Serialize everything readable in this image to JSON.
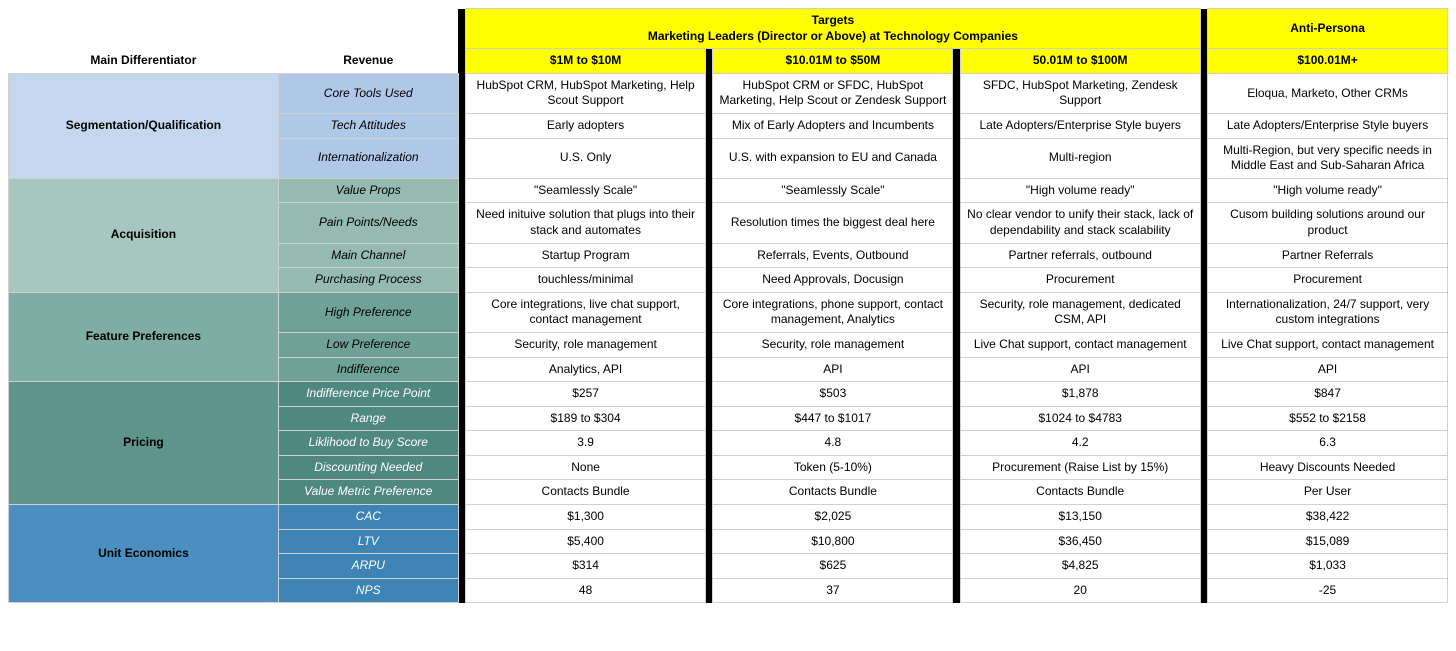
{
  "header": {
    "main_diff": "Main Differentiator",
    "revenue": "Revenue",
    "targets_title": "Targets",
    "targets_subtitle": "Marketing Leaders (Director or Above) at Technology Companies",
    "anti_persona": "Anti-Persona",
    "col1": "$1M to $10M",
    "col2": "$10.01M to $50M",
    "col3": "50.01M to $100M",
    "col4": "$100.01M+"
  },
  "groups": [
    {
      "name": "Segmentation/Qualification",
      "cat_class": "g0-cat",
      "sub_class": "g0-sub",
      "rows": [
        {
          "label": "Core Tools Used",
          "c1": "HubSpot CRM, HubSpot Marketing, Help Scout Support",
          "c2": "HubSpot CRM or SFDC, HubSpot Marketing, Help Scout or Zendesk Support",
          "c3": "SFDC, HubSpot Marketing, Zendesk Support",
          "c4": "Eloqua, Marketo, Other CRMs"
        },
        {
          "label": "Tech Attitudes",
          "c1": "Early adopters",
          "c2": "Mix of Early Adopters and Incumbents",
          "c3": "Late Adopters/Enterprise Style buyers",
          "c4": "Late Adopters/Enterprise Style buyers"
        },
        {
          "label": "Internationalization",
          "c1": "U.S. Only",
          "c2": "U.S. with expansion to EU and Canada",
          "c3": "Multi-region",
          "c4": "Multi-Region, but very specific needs in Middle East and Sub-Saharan Africa"
        }
      ]
    },
    {
      "name": "Acquisition",
      "cat_class": "g1-cat",
      "sub_class": "g1-sub",
      "rows": [
        {
          "label": "Value Props",
          "c1": "\"Seamlessly Scale\"",
          "c2": "\"Seamlessly Scale\"",
          "c3": "\"High volume ready\"",
          "c4": "\"High volume ready\""
        },
        {
          "label": "Pain Points/Needs",
          "c1": "Need inituive solution that plugs into their stack and automates",
          "c2": "Resolution times the biggest deal here",
          "c3": "No clear vendor to unify their stack, lack of dependability and stack scalability",
          "c4": "Cusom building solutions around our product"
        },
        {
          "label": "Main Channel",
          "c1": "Startup Program",
          "c2": "Referrals, Events, Outbound",
          "c3": "Partner referrals, outbound",
          "c4": "Partner Referrals"
        },
        {
          "label": "Purchasing Process",
          "c1": "touchless/minimal",
          "c2": "Need Approvals, Docusign",
          "c3": "Procurement",
          "c4": "Procurement"
        }
      ]
    },
    {
      "name": "Feature Preferences",
      "cat_class": "g2-cat",
      "sub_class": "g2-sub",
      "rows": [
        {
          "label": "High Preference",
          "c1": "Core integrations, live chat support, contact management",
          "c2": "Core integrations, phone support, contact management, Analytics",
          "c3": "Security, role management, dedicated CSM, API",
          "c4": "Internationalization, 24/7 support, very custom integrations"
        },
        {
          "label": "Low Preference",
          "c1": "Security, role management",
          "c2": "Security, role management",
          "c3": "Live Chat support, contact management",
          "c4": "Live Chat support, contact management"
        },
        {
          "label": "Indifference",
          "c1": "Analytics, API",
          "c2": "API",
          "c3": "API",
          "c4": "API"
        }
      ]
    },
    {
      "name": "Pricing",
      "cat_class": "g3-cat",
      "sub_class": "g3-sub",
      "rows": [
        {
          "label": "Indifference Price Point",
          "c1": "$257",
          "c2": "$503",
          "c3": "$1,878",
          "c4": "$847"
        },
        {
          "label": "Range",
          "c1": "$189 to $304",
          "c2": "$447 to $1017",
          "c3": "$1024 to $4783",
          "c4": "$552 to $2158"
        },
        {
          "label": "Liklihood to Buy Score",
          "c1": "3.9",
          "c2": "4.8",
          "c3": "4.2",
          "c4": "6.3"
        },
        {
          "label": "Discounting Needed",
          "c1": "None",
          "c2": "Token (5-10%)",
          "c3": "Procurement (Raise List by 15%)",
          "c4": "Heavy Discounts Needed"
        },
        {
          "label": "Value Metric Preference",
          "c1": "Contacts Bundle",
          "c2": "Contacts Bundle",
          "c3": "Contacts Bundle",
          "c4": "Per User"
        }
      ]
    },
    {
      "name": "Unit Economics",
      "cat_class": "g4-cat",
      "sub_class": "g4-sub",
      "rows": [
        {
          "label": "CAC",
          "c1": "$1,300",
          "c2": "$2,025",
          "c3": "$13,150",
          "c4": "$38,422"
        },
        {
          "label": "LTV",
          "c1": "$5,400",
          "c2": "$10,800",
          "c3": "$36,450",
          "c4": "$15,089"
        },
        {
          "label": "ARPU",
          "c1": "$314",
          "c2": "$625",
          "c3": "$4,825",
          "c4": "$1,033"
        },
        {
          "label": "NPS",
          "c1": "48",
          "c2": "37",
          "c3": "20",
          "c4": "-25"
        }
      ]
    }
  ],
  "layout": {
    "col_widths_pct": [
      18,
      12,
      0.5,
      16,
      0.5,
      16,
      0.5,
      16,
      0.5,
      16
    ]
  }
}
